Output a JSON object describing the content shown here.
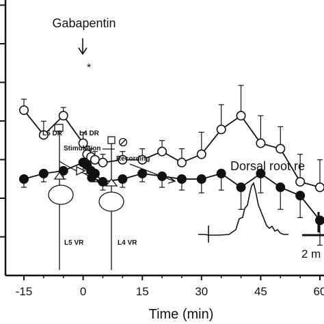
{
  "chart_data": {
    "type": "line",
    "title": "",
    "xlabel": "Time (min)",
    "ylabel": "",
    "xlim": [
      -20,
      62
    ],
    "ylim": [
      0,
      1
    ],
    "x_ticks": [
      -15,
      0,
      15,
      30,
      45,
      60
    ],
    "x_tick_labels": [
      "-15",
      "0",
      "15",
      "30",
      "45",
      "60"
    ],
    "y_tick_count": 7,
    "series": [
      {
        "marker": "open-circle",
        "x": [
          -15,
          -10,
          -5,
          0,
          1,
          2,
          3,
          5,
          10,
          15,
          20,
          25,
          30,
          35,
          40,
          45,
          50,
          55,
          60
        ],
        "y": [
          0.6,
          0.51,
          0.58,
          0.48,
          0.44,
          0.43,
          0.42,
          0.41,
          0.42,
          0.42,
          0.45,
          0.41,
          0.44,
          0.53,
          0.58,
          0.48,
          0.46,
          0.34,
          0.32
        ],
        "err": [
          0.04,
          0.05,
          0.03,
          0.04,
          0.03,
          0.03,
          0.03,
          0.03,
          0.03,
          0.04,
          0.04,
          0.05,
          0.08,
          0.09,
          0.11,
          0.1,
          0.08,
          0.1,
          0.1
        ]
      },
      {
        "marker": "filled-circle",
        "x": [
          -15,
          -10,
          -5,
          0,
          1,
          2,
          3,
          5,
          10,
          15,
          20,
          25,
          30,
          35,
          40,
          45,
          50,
          55,
          60
        ],
        "y": [
          0.35,
          0.37,
          0.38,
          0.41,
          0.4,
          0.38,
          0.37,
          0.34,
          0.35,
          0.37,
          0.36,
          0.35,
          0.35,
          0.37,
          0.32,
          0.37,
          0.32,
          0.29,
          0.2
        ],
        "err": [
          0.03,
          0.03,
          0.03,
          0.03,
          0.03,
          0.03,
          0.03,
          0.03,
          0.03,
          0.03,
          0.04,
          0.04,
          0.05,
          0.06,
          0.08,
          0.07,
          0.08,
          0.08,
          0.09
        ]
      }
    ],
    "annotations": {
      "drug_label": "Gabapentin",
      "significance": "*",
      "significance_x": 2
    }
  },
  "inset": {
    "labels": {
      "l5_dr": "L5 DR",
      "l4_dr": "L4 DR",
      "stimulation": "Stimulation",
      "recording": "Recording",
      "l5_vr": "L5 VR",
      "l4_vr": "L4 VR"
    },
    "trace_title": "Dorsal root re",
    "scale_time": "2 m"
  },
  "colors": {
    "ink": "#111111",
    "background": "#ffffff"
  }
}
